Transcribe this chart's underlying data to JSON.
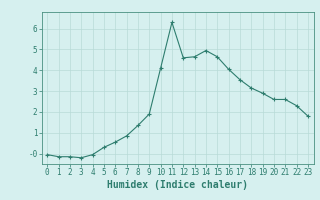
{
  "xlabel": "Humidex (Indice chaleur)",
  "ylabel": "",
  "x": [
    0,
    1,
    2,
    3,
    4,
    5,
    6,
    7,
    8,
    9,
    10,
    11,
    12,
    13,
    14,
    15,
    16,
    17,
    18,
    19,
    20,
    21,
    22,
    23
  ],
  "y": [
    -0.05,
    -0.15,
    -0.15,
    -0.2,
    -0.05,
    0.3,
    0.55,
    0.85,
    1.35,
    1.9,
    4.1,
    6.3,
    4.6,
    4.65,
    4.95,
    4.65,
    4.05,
    3.55,
    3.15,
    2.9,
    2.6,
    2.6,
    2.3,
    1.8
  ],
  "line_color": "#2e7d6e",
  "marker": "+",
  "background_color": "#d6f0ef",
  "grid_color": "#b8dbd8",
  "tick_color": "#2e7d6e",
  "label_color": "#2e7d6e",
  "ylim": [
    -0.5,
    6.8
  ],
  "xlim": [
    -0.5,
    23.5
  ],
  "ytick_labels": [
    "-0",
    "1",
    "2",
    "3",
    "4",
    "5",
    "6"
  ],
  "ytick_values": [
    0.0,
    1,
    2,
    3,
    4,
    5,
    6
  ],
  "xtick_labels": [
    "0",
    "1",
    "2",
    "3",
    "4",
    "5",
    "6",
    "7",
    "8",
    "9",
    "10",
    "11",
    "12",
    "13",
    "14",
    "15",
    "16",
    "17",
    "18",
    "19",
    "20",
    "21",
    "22",
    "23"
  ],
  "xtick_values": [
    0,
    1,
    2,
    3,
    4,
    5,
    6,
    7,
    8,
    9,
    10,
    11,
    12,
    13,
    14,
    15,
    16,
    17,
    18,
    19,
    20,
    21,
    22,
    23
  ],
  "spine_color": "#4a9080",
  "fontsize_ticks": 5.5,
  "fontsize_label": 7.0,
  "linewidth": 0.8,
  "markersize": 3.0,
  "markeredgewidth": 0.8
}
